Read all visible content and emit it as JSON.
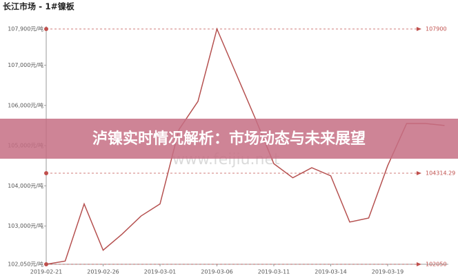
{
  "chart_data": {
    "type": "line",
    "title": "长江市场 - 1#镍板",
    "categories": [
      "2019-02-21",
      null,
      null,
      "2019-02-26",
      null,
      null,
      "2019-03-01",
      null,
      null,
      "2019-03-06",
      null,
      null,
      "2019-03-11",
      null,
      null,
      "2019-03-14",
      null,
      null,
      "2019-03-19",
      null,
      null,
      null
    ],
    "values": [
      102050,
      102130,
      103550,
      102400,
      102800,
      103250,
      103550,
      105400,
      106100,
      107900,
      106800,
      105700,
      104550,
      104200,
      104450,
      104250,
      103100,
      103200,
      104500,
      105550,
      105550,
      105500
    ],
    "color": "#b5504f",
    "ylim": [
      102050,
      107900
    ],
    "yticks": [
      {
        "value": 102050,
        "label": "102,050元/吨"
      },
      {
        "value": 103000,
        "label": "103,000元/吨"
      },
      {
        "value": 104000,
        "label": "104,000元/吨"
      },
      {
        "value": 105000,
        "label": "105,000元/吨"
      },
      {
        "value": 106000,
        "label": "106,000元/吨"
      },
      {
        "value": 107000,
        "label": "107,000元/吨"
      },
      {
        "value": 107900,
        "label": "107,900元/吨"
      }
    ],
    "mark_lines": [
      107900,
      104314.29,
      102050
    ],
    "mark_line_color": "#c0504d",
    "watermark": "www.feijiu.net",
    "banner": "泸镍实时情况解析：市场动态与未来展望"
  }
}
